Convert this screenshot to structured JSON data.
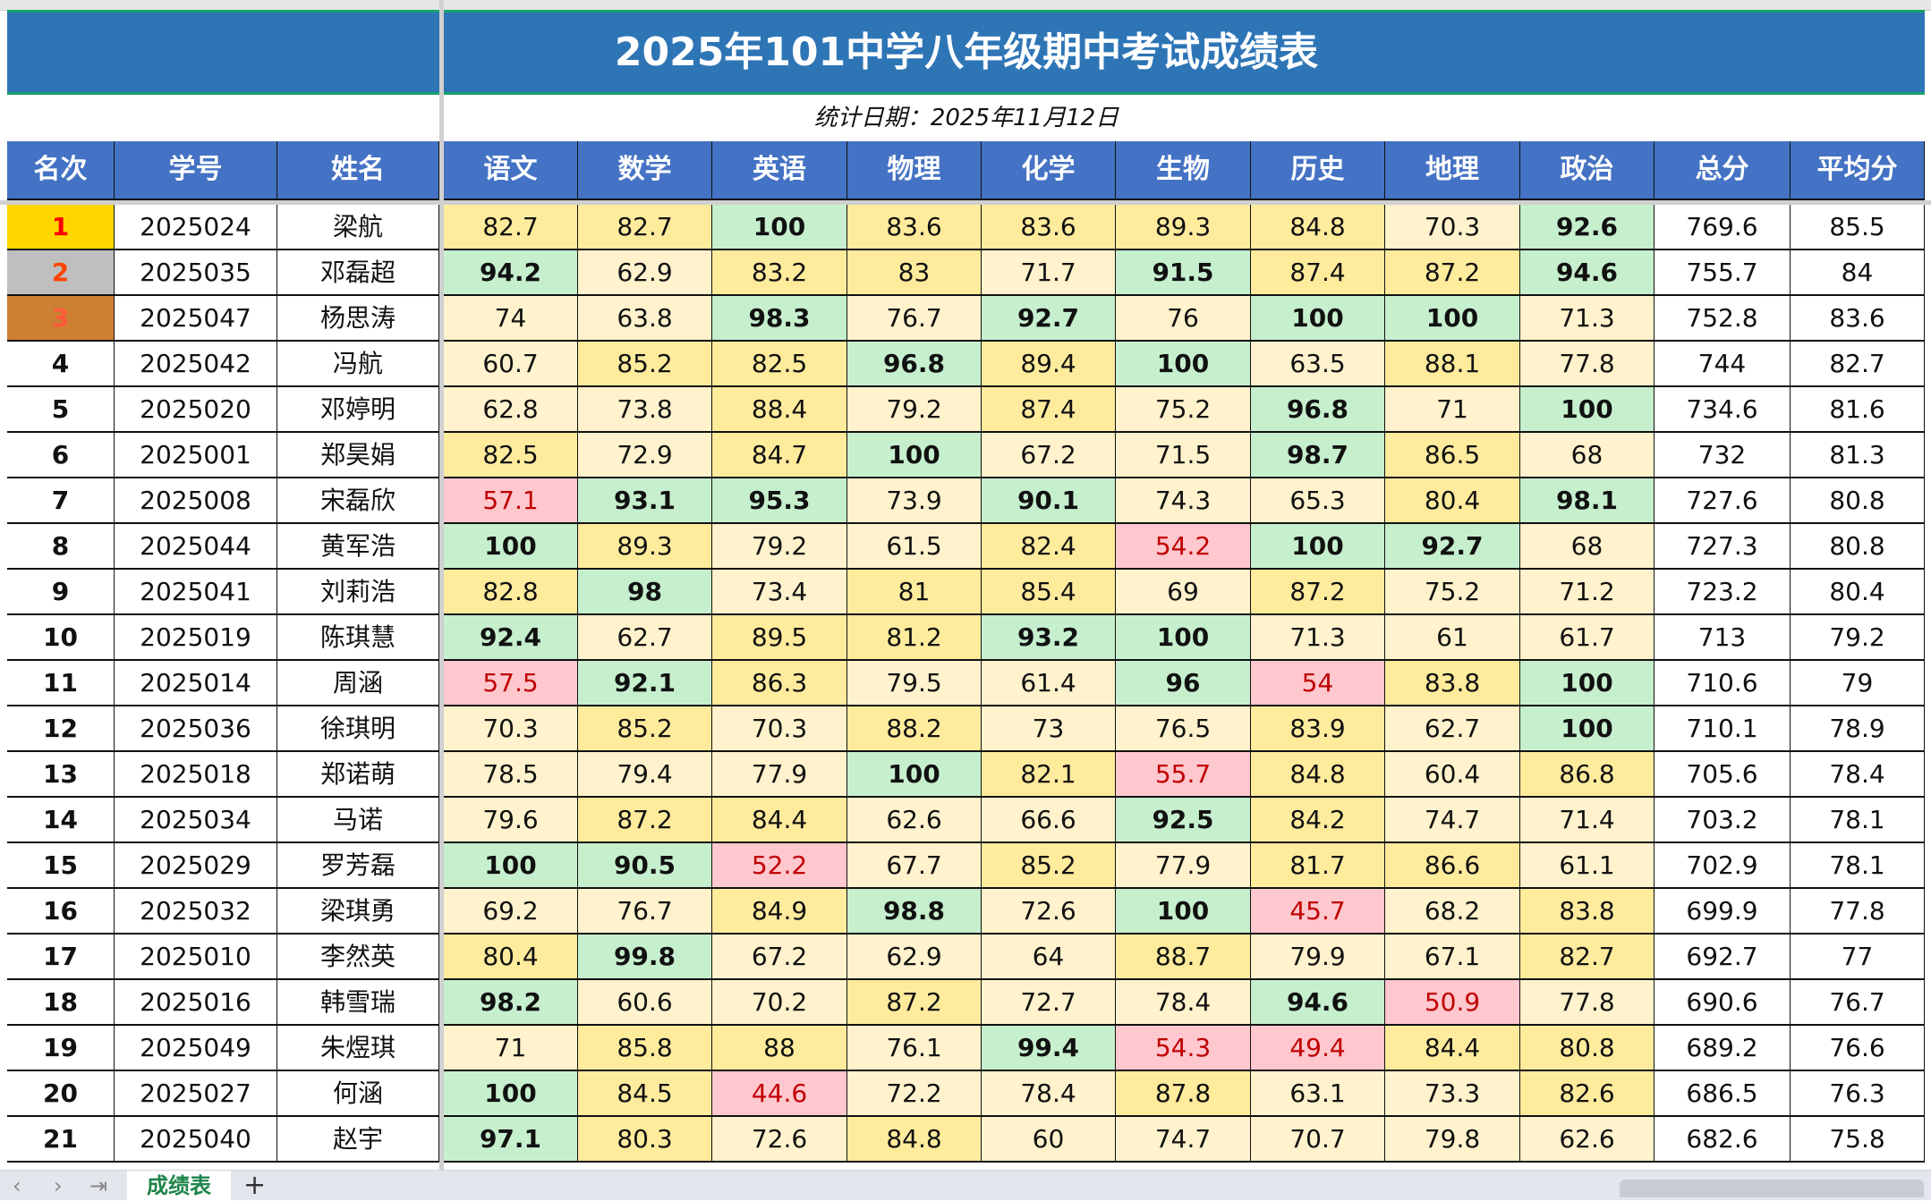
{
  "title": "2025年101中学八年级期中考试成绩表",
  "date_label": "统计日期：2025年11月12日",
  "headers": [
    "名次",
    "学号",
    "姓名",
    "语文",
    "数学",
    "英语",
    "物理",
    "化学",
    "生物",
    "历史",
    "地理",
    "政治",
    "总分",
    "平均分"
  ],
  "colors": {
    "title_bg": "#2E75B6",
    "header_bg": "#4472C4",
    "high": "#C6EFCE",
    "good": "#FFEB9C",
    "mid": "#FFF2CC",
    "fail": "#FFC7CE",
    "fail_text": "#C00000",
    "rank1": "#FFD700",
    "rank2": "#BFBFBF",
    "rank3": "#CD7F32"
  },
  "score_rules": {
    "high_min": 90,
    "good_min": 80,
    "mid_min": 60
  },
  "rows": [
    {
      "rank": "1",
      "id": "2025024",
      "name": "梁航",
      "scores": [
        82.7,
        82.7,
        100,
        83.6,
        83.6,
        89.3,
        84.8,
        70.3,
        92.6
      ],
      "total": "769.6",
      "avg": "85.5"
    },
    {
      "rank": "2",
      "id": "2025035",
      "name": "邓磊超",
      "scores": [
        94.2,
        62.9,
        83.2,
        83,
        71.7,
        91.5,
        87.4,
        87.2,
        94.6
      ],
      "total": "755.7",
      "avg": "84"
    },
    {
      "rank": "3",
      "id": "2025047",
      "name": "杨思涛",
      "scores": [
        74,
        63.8,
        98.3,
        76.7,
        92.7,
        76,
        100,
        100,
        71.3
      ],
      "total": "752.8",
      "avg": "83.6"
    },
    {
      "rank": "4",
      "id": "2025042",
      "name": "冯航",
      "scores": [
        60.7,
        85.2,
        82.5,
        96.8,
        89.4,
        100,
        63.5,
        88.1,
        77.8
      ],
      "total": "744",
      "avg": "82.7"
    },
    {
      "rank": "5",
      "id": "2025020",
      "name": "邓婷明",
      "scores": [
        62.8,
        73.8,
        88.4,
        79.2,
        87.4,
        75.2,
        96.8,
        71,
        100
      ],
      "total": "734.6",
      "avg": "81.6"
    },
    {
      "rank": "6",
      "id": "2025001",
      "name": "郑昊娟",
      "scores": [
        82.5,
        72.9,
        84.7,
        100,
        67.2,
        71.5,
        98.7,
        86.5,
        68
      ],
      "total": "732",
      "avg": "81.3"
    },
    {
      "rank": "7",
      "id": "2025008",
      "name": "宋磊欣",
      "scores": [
        57.1,
        93.1,
        95.3,
        73.9,
        90.1,
        74.3,
        65.3,
        80.4,
        98.1
      ],
      "total": "727.6",
      "avg": "80.8"
    },
    {
      "rank": "8",
      "id": "2025044",
      "name": "黄军浩",
      "scores": [
        100,
        89.3,
        79.2,
        61.5,
        82.4,
        54.2,
        100,
        92.7,
        68
      ],
      "total": "727.3",
      "avg": "80.8"
    },
    {
      "rank": "9",
      "id": "2025041",
      "name": "刘莉浩",
      "scores": [
        82.8,
        98,
        73.4,
        81,
        85.4,
        69,
        87.2,
        75.2,
        71.2
      ],
      "total": "723.2",
      "avg": "80.4"
    },
    {
      "rank": "10",
      "id": "2025019",
      "name": "陈琪慧",
      "scores": [
        92.4,
        62.7,
        89.5,
        81.2,
        93.2,
        100,
        71.3,
        61,
        61.7
      ],
      "total": "713",
      "avg": "79.2"
    },
    {
      "rank": "11",
      "id": "2025014",
      "name": "周涵",
      "scores": [
        57.5,
        92.1,
        86.3,
        79.5,
        61.4,
        96,
        54,
        83.8,
        100
      ],
      "total": "710.6",
      "avg": "79"
    },
    {
      "rank": "12",
      "id": "2025036",
      "name": "徐琪明",
      "scores": [
        70.3,
        85.2,
        70.3,
        88.2,
        73,
        76.5,
        83.9,
        62.7,
        100
      ],
      "total": "710.1",
      "avg": "78.9"
    },
    {
      "rank": "13",
      "id": "2025018",
      "name": "郑诺萌",
      "scores": [
        78.5,
        79.4,
        77.9,
        100,
        82.1,
        55.7,
        84.8,
        60.4,
        86.8
      ],
      "total": "705.6",
      "avg": "78.4"
    },
    {
      "rank": "14",
      "id": "2025034",
      "name": "马诺",
      "scores": [
        79.6,
        87.2,
        84.4,
        62.6,
        66.6,
        92.5,
        84.2,
        74.7,
        71.4
      ],
      "total": "703.2",
      "avg": "78.1"
    },
    {
      "rank": "15",
      "id": "2025029",
      "name": "罗芳磊",
      "scores": [
        100,
        90.5,
        52.2,
        67.7,
        85.2,
        77.9,
        81.7,
        86.6,
        61.1
      ],
      "total": "702.9",
      "avg": "78.1"
    },
    {
      "rank": "16",
      "id": "2025032",
      "name": "梁琪勇",
      "scores": [
        69.2,
        76.7,
        84.9,
        98.8,
        72.6,
        100,
        45.7,
        68.2,
        83.8
      ],
      "total": "699.9",
      "avg": "77.8"
    },
    {
      "rank": "17",
      "id": "2025010",
      "name": "李然英",
      "scores": [
        80.4,
        99.8,
        67.2,
        62.9,
        64,
        88.7,
        79.9,
        67.1,
        82.7
      ],
      "total": "692.7",
      "avg": "77"
    },
    {
      "rank": "18",
      "id": "2025016",
      "name": "韩雪瑞",
      "scores": [
        98.2,
        60.6,
        70.2,
        87.2,
        72.7,
        78.4,
        94.6,
        50.9,
        77.8
      ],
      "total": "690.6",
      "avg": "76.7"
    },
    {
      "rank": "19",
      "id": "2025049",
      "name": "朱煜琪",
      "scores": [
        71,
        85.8,
        88,
        76.1,
        99.4,
        54.3,
        49.4,
        84.4,
        80.8
      ],
      "total": "689.2",
      "avg": "76.6"
    },
    {
      "rank": "20",
      "id": "2025027",
      "name": "何涵",
      "scores": [
        100,
        84.5,
        44.6,
        72.2,
        78.4,
        87.8,
        63.1,
        73.3,
        82.6
      ],
      "total": "686.5",
      "avg": "76.3"
    },
    {
      "rank": "21",
      "id": "2025040",
      "name": "赵宇",
      "scores": [
        97.1,
        80.3,
        72.6,
        84.8,
        60,
        74.7,
        70.7,
        79.8,
        62.6
      ],
      "total": "682.6",
      "avg": "75.8"
    }
  ],
  "tabbar": {
    "sheet_tab": "成绩表",
    "add_label": "+",
    "nav_prev": "‹",
    "nav_next": "›",
    "nav_last": "⇥"
  }
}
